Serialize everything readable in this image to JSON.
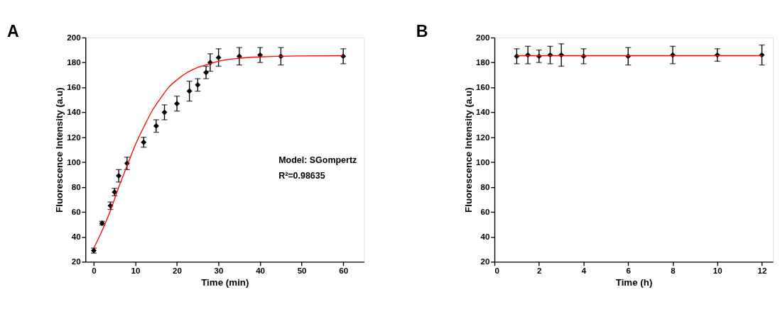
{
  "chart_data": [
    {
      "type": "scatter",
      "title": "A",
      "xlabel": "Time (min)",
      "ylabel": "Fluorescence Intensity (a.u)",
      "xlim": [
        -2,
        65
      ],
      "xticks": [
        0,
        10,
        20,
        30,
        40,
        50,
        60
      ],
      "ylim": [
        20,
        200
      ],
      "yticks": [
        20,
        40,
        60,
        80,
        100,
        120,
        140,
        160,
        180,
        200
      ],
      "grid": false,
      "annotations": [
        "Model: SGompertz",
        "R²=0.98635"
      ],
      "x": [
        0,
        2,
        4,
        5,
        6,
        8,
        12,
        15,
        17,
        20,
        23,
        25,
        27,
        28,
        30,
        35,
        40,
        45,
        60
      ],
      "series": [
        {
          "marker": "diamond",
          "color": "#000000",
          "values": [
            29,
            51,
            65,
            76,
            89,
            99,
            116,
            129,
            140,
            147,
            157,
            162,
            172,
            180,
            184,
            185,
            186,
            185,
            185
          ],
          "errors": [
            2,
            1.5,
            3,
            3,
            5,
            5,
            4,
            5,
            6,
            6,
            8,
            5,
            5,
            7,
            7,
            7,
            6,
            7,
            6
          ]
        },
        {
          "type": "line",
          "color": "#ff0000",
          "x": [
            0,
            2,
            4,
            6,
            8,
            10,
            12,
            14,
            16,
            18,
            20,
            22,
            25,
            28,
            30,
            35,
            40,
            45,
            50,
            60
          ],
          "values": [
            31,
            45,
            61,
            80,
            97,
            114,
            128,
            141,
            151,
            160,
            166,
            171,
            176,
            179,
            181,
            183.5,
            184.5,
            185,
            185.3,
            185.5
          ]
        }
      ]
    },
    {
      "type": "scatter",
      "title": "B",
      "xlabel": "Time (h)",
      "ylabel": "Fluorescence Intensity (a.u)",
      "xlim": [
        0,
        12.5
      ],
      "xticks": [
        0,
        2,
        4,
        6,
        8,
        10,
        12
      ],
      "ylim": [
        20,
        200
      ],
      "yticks": [
        20,
        40,
        60,
        80,
        100,
        120,
        140,
        160,
        180,
        200
      ],
      "grid": false,
      "x": [
        1,
        1.5,
        2,
        2.5,
        3,
        4,
        6,
        8,
        10,
        12
      ],
      "series": [
        {
          "marker": "diamond",
          "color": "#000000",
          "values": [
            185,
            186,
            185,
            186,
            186,
            185,
            185,
            186,
            186,
            186
          ],
          "errors": [
            6,
            7,
            5,
            7,
            9,
            6,
            7,
            7,
            5,
            8
          ]
        },
        {
          "type": "line",
          "color": "#ff0000",
          "x": [
            1,
            12
          ],
          "values": [
            185.5,
            185.5
          ]
        }
      ]
    }
  ]
}
